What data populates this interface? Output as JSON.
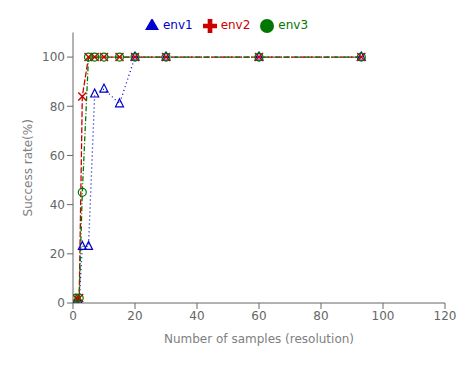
{
  "chart_data": {
    "type": "line",
    "xlabel": "Number of samples (resolution)",
    "ylabel": "Success rate(%)",
    "x": [
      1,
      2,
      3,
      5,
      7,
      10,
      15,
      20,
      30,
      60,
      93
    ],
    "series": [
      {
        "name": "env1",
        "color": "#0000cc",
        "marker": "triangle",
        "line_style": "dotted",
        "values": [
          0,
          0,
          23,
          23,
          85,
          87,
          81,
          100,
          100,
          100,
          100
        ]
      },
      {
        "name": "env2",
        "color": "#cc0000",
        "marker": "x",
        "line_style": "dashed",
        "values": [
          2,
          2,
          84,
          100,
          100,
          100,
          100,
          100,
          100,
          100,
          100
        ]
      },
      {
        "name": "env3",
        "color": "#007700",
        "marker": "circle",
        "line_style": "dashdot",
        "values": [
          2,
          2,
          45,
          100,
          100,
          100,
          100,
          100,
          100,
          100,
          100
        ]
      }
    ],
    "xlim": [
      0,
      120
    ],
    "ylim": [
      0,
      110
    ],
    "xticks": [
      0,
      20,
      40,
      60,
      80,
      100,
      120
    ],
    "yticks": [
      0,
      20,
      40,
      60,
      80,
      100
    ],
    "grid": false,
    "legend": "top"
  }
}
